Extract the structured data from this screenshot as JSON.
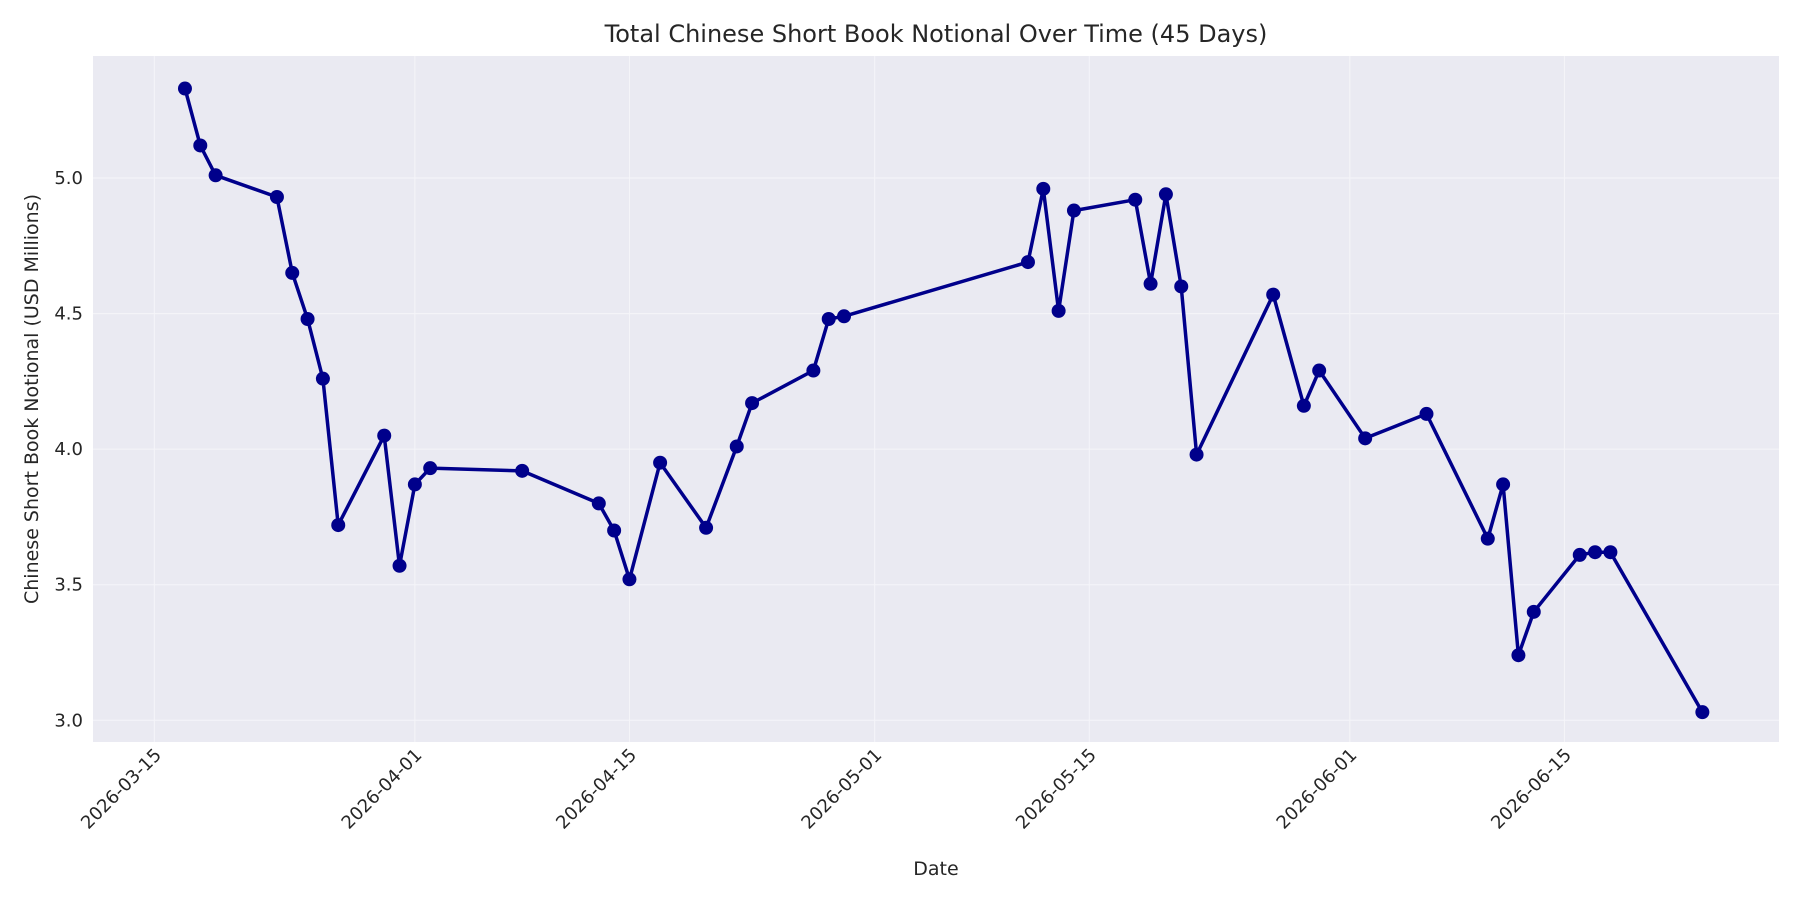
{
  "chart_data": {
    "type": "line",
    "title": "Total Chinese Short Book Notional Over Time (45 Days)",
    "xlabel": "Date",
    "ylabel": "Chinese Short Book Notional (USD Millions)",
    "xlim": [
      "2026-03-11",
      "2026-06-29"
    ],
    "ylim": [
      2.92,
      5.45
    ],
    "x_ticks": [
      "2026-03-15",
      "2026-04-01",
      "2026-04-15",
      "2026-05-01",
      "2026-05-15",
      "2026-06-01",
      "2026-06-15"
    ],
    "y_ticks": [
      "3.0",
      "3.5",
      "4.0",
      "4.5",
      "5.0"
    ],
    "grid": true,
    "colors": {
      "line": "#00008b",
      "plot_background": "#eaeaf2",
      "grid": "#f5f5f9"
    },
    "series": [
      {
        "name": "",
        "x": [
          "2026-03-17",
          "2026-03-18",
          "2026-03-19",
          "2026-03-23",
          "2026-03-24",
          "2026-03-25",
          "2026-03-26",
          "2026-03-27",
          "2026-03-30",
          "2026-03-31",
          "2026-04-01",
          "2026-04-02",
          "2026-04-08",
          "2026-04-13",
          "2026-04-14",
          "2026-04-15",
          "2026-04-17",
          "2026-04-20",
          "2026-04-22",
          "2026-04-23",
          "2026-04-27",
          "2026-04-28",
          "2026-04-29",
          "2026-05-11",
          "2026-05-12",
          "2026-05-13",
          "2026-05-14",
          "2026-05-18",
          "2026-05-19",
          "2026-05-20",
          "2026-05-21",
          "2026-05-22",
          "2026-05-27",
          "2026-05-29",
          "2026-05-30",
          "2026-06-02",
          "2026-06-06",
          "2026-06-10",
          "2026-06-11",
          "2026-06-12",
          "2026-06-13",
          "2026-06-16",
          "2026-06-17",
          "2026-06-18",
          "2026-06-24"
        ],
        "values": [
          5.33,
          5.12,
          5.01,
          4.93,
          4.65,
          4.48,
          4.26,
          3.72,
          4.05,
          3.57,
          3.87,
          3.93,
          3.92,
          3.8,
          3.7,
          3.52,
          3.95,
          3.71,
          4.01,
          4.17,
          4.29,
          4.48,
          4.49,
          4.69,
          4.96,
          4.51,
          4.88,
          4.92,
          4.61,
          4.94,
          4.6,
          3.98,
          4.57,
          4.16,
          4.29,
          4.04,
          4.13,
          3.67,
          3.87,
          3.24,
          3.4,
          3.61,
          3.62,
          3.62,
          3.03
        ]
      }
    ]
  }
}
